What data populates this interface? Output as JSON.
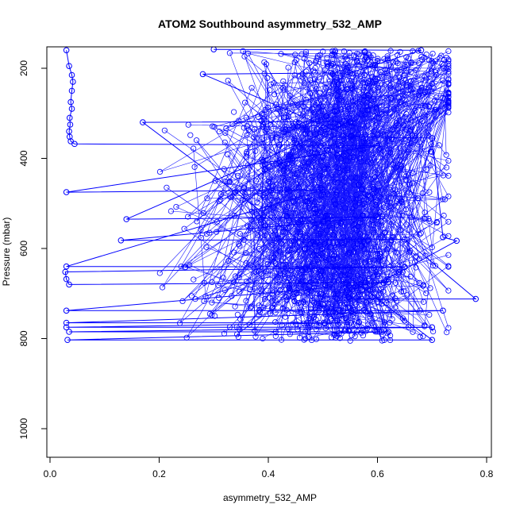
{
  "chart_data": {
    "type": "scatter",
    "title": "ATOM2 Southbound asymmetry_532_AMP",
    "xlabel": "asymmetry_532_AMP",
    "ylabel": "Pressure (mbar)",
    "xlim": [
      0.0,
      0.8
    ],
    "ylim": [
      1060,
      155
    ],
    "y_reversed": true,
    "x_ticks": [
      0.0,
      0.2,
      0.4,
      0.6,
      0.8
    ],
    "x_tick_labels": [
      "0.0",
      "0.2",
      "0.4",
      "0.6",
      "0.8"
    ],
    "y_ticks": [
      200,
      400,
      600,
      800,
      1000
    ],
    "y_tick_labels": [
      "200",
      "400",
      "600",
      "800",
      "1000"
    ],
    "grid": false,
    "legend": "none",
    "style": {
      "color": "#0000ff",
      "marker": "open-circle",
      "connected": true
    },
    "series": [
      {
        "points": [
          [
            0.03,
            160
          ],
          [
            0.035,
            195
          ],
          [
            0.04,
            215
          ],
          [
            0.042,
            230
          ],
          [
            0.04,
            250
          ],
          [
            0.038,
            275
          ],
          [
            0.04,
            290
          ],
          [
            0.036,
            310
          ],
          [
            0.037,
            325
          ],
          [
            0.035,
            340
          ],
          [
            0.036,
            352
          ],
          [
            0.038,
            362
          ],
          [
            0.045,
            368
          ],
          [
            0.42,
            370
          ],
          [
            0.6,
            372
          ],
          [
            0.03,
            475
          ],
          [
            0.5,
            470
          ],
          [
            0.03,
            640
          ],
          [
            0.65,
            641
          ],
          [
            0.028,
            652
          ],
          [
            0.03,
            668
          ],
          [
            0.035,
            680
          ],
          [
            0.62,
            675
          ],
          [
            0.03,
            738
          ],
          [
            0.72,
            738
          ],
          [
            0.03,
            765
          ],
          [
            0.55,
            765
          ],
          [
            0.03,
            775
          ],
          [
            0.7,
            775
          ],
          [
            0.035,
            785
          ],
          [
            0.62,
            785
          ],
          [
            0.032,
            803
          ],
          [
            0.7,
            803
          ],
          [
            0.17,
            320
          ],
          [
            0.55,
            318
          ],
          [
            0.14,
            535
          ],
          [
            0.6,
            530
          ],
          [
            0.13,
            582
          ],
          [
            0.65,
            580
          ],
          [
            0.78,
            712
          ],
          [
            0.55,
            712
          ],
          [
            0.745,
            583
          ],
          [
            0.72,
            575
          ],
          [
            0.7,
            355
          ],
          [
            0.55,
            352
          ],
          [
            0.28,
            213
          ],
          [
            0.55,
            210
          ],
          [
            0.68,
            160
          ],
          [
            0.3,
            158
          ]
        ]
      }
    ]
  }
}
